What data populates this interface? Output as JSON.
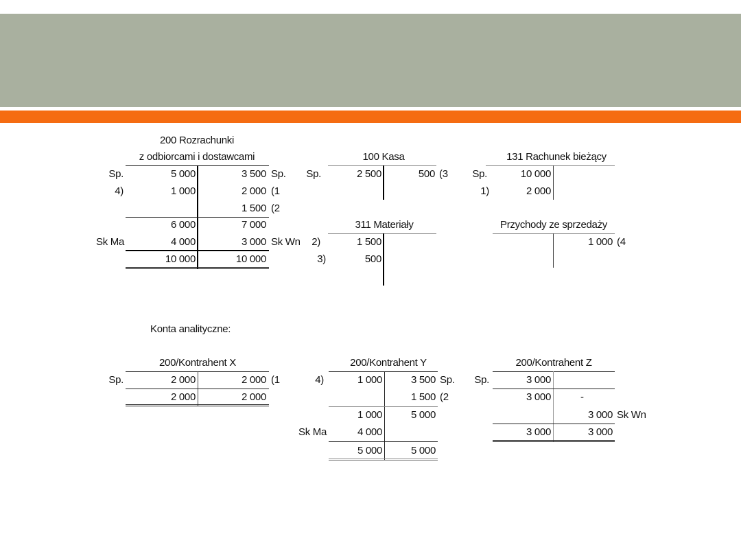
{
  "colors": {
    "header": "#A9B09F",
    "accent": "#F56C12"
  },
  "a200": {
    "title1": "200 Rozrachunki",
    "title2": "z odbiorcami i dostawcami",
    "r1": [
      "Sp.",
      "5 000",
      "3 500",
      "Sp."
    ],
    "r2": [
      "4)",
      "1 000",
      "2 000",
      "(1"
    ],
    "r3": [
      "1 500",
      "(2"
    ],
    "r4": [
      "6 000",
      "7 000"
    ],
    "r5": [
      "Sk Ma",
      "4 000",
      "3 000",
      "Sk Wn"
    ],
    "r6": [
      "10 000",
      "10 000"
    ]
  },
  "a100": {
    "title": "100 Kasa",
    "r1": [
      "Sp.",
      "2 500",
      "500",
      "(3"
    ]
  },
  "a131": {
    "title": "131 Rachunek bieżący",
    "r1": [
      "Sp.",
      "10 000"
    ],
    "r2": [
      "1)",
      "2 000"
    ]
  },
  "a311": {
    "title": "311 Materiały",
    "r1": [
      "2)",
      "1 500"
    ],
    "r2": [
      "3)",
      "500"
    ]
  },
  "przych": {
    "title": "Przychody ze sprzedaży",
    "r1": [
      "1 000",
      "(4"
    ]
  },
  "analytic_heading": "Konta analityczne:",
  "kx": {
    "title": "200/Kontrahent X",
    "r1": [
      "Sp.",
      "2 000",
      "2 000",
      "(1"
    ],
    "r2": [
      "2 000",
      "2 000"
    ]
  },
  "ky": {
    "title": "200/Kontrahent Y",
    "r1": [
      "4)",
      "1 000",
      "3 500",
      "Sp."
    ],
    "r2": [
      "1 500",
      "(2"
    ],
    "r3": [
      "1 000",
      "5 000"
    ],
    "r4": [
      "Sk Ma",
      "4 000"
    ],
    "r5": [
      "5 000",
      "5 000"
    ]
  },
  "kz": {
    "title": "200/Kontrahent Z",
    "r1": [
      "Sp.",
      "3 000"
    ],
    "r2": [
      "3 000",
      "-"
    ],
    "r3": [
      "3 000",
      "Sk Wn"
    ],
    "r4": [
      "3 000",
      "3 000"
    ]
  }
}
